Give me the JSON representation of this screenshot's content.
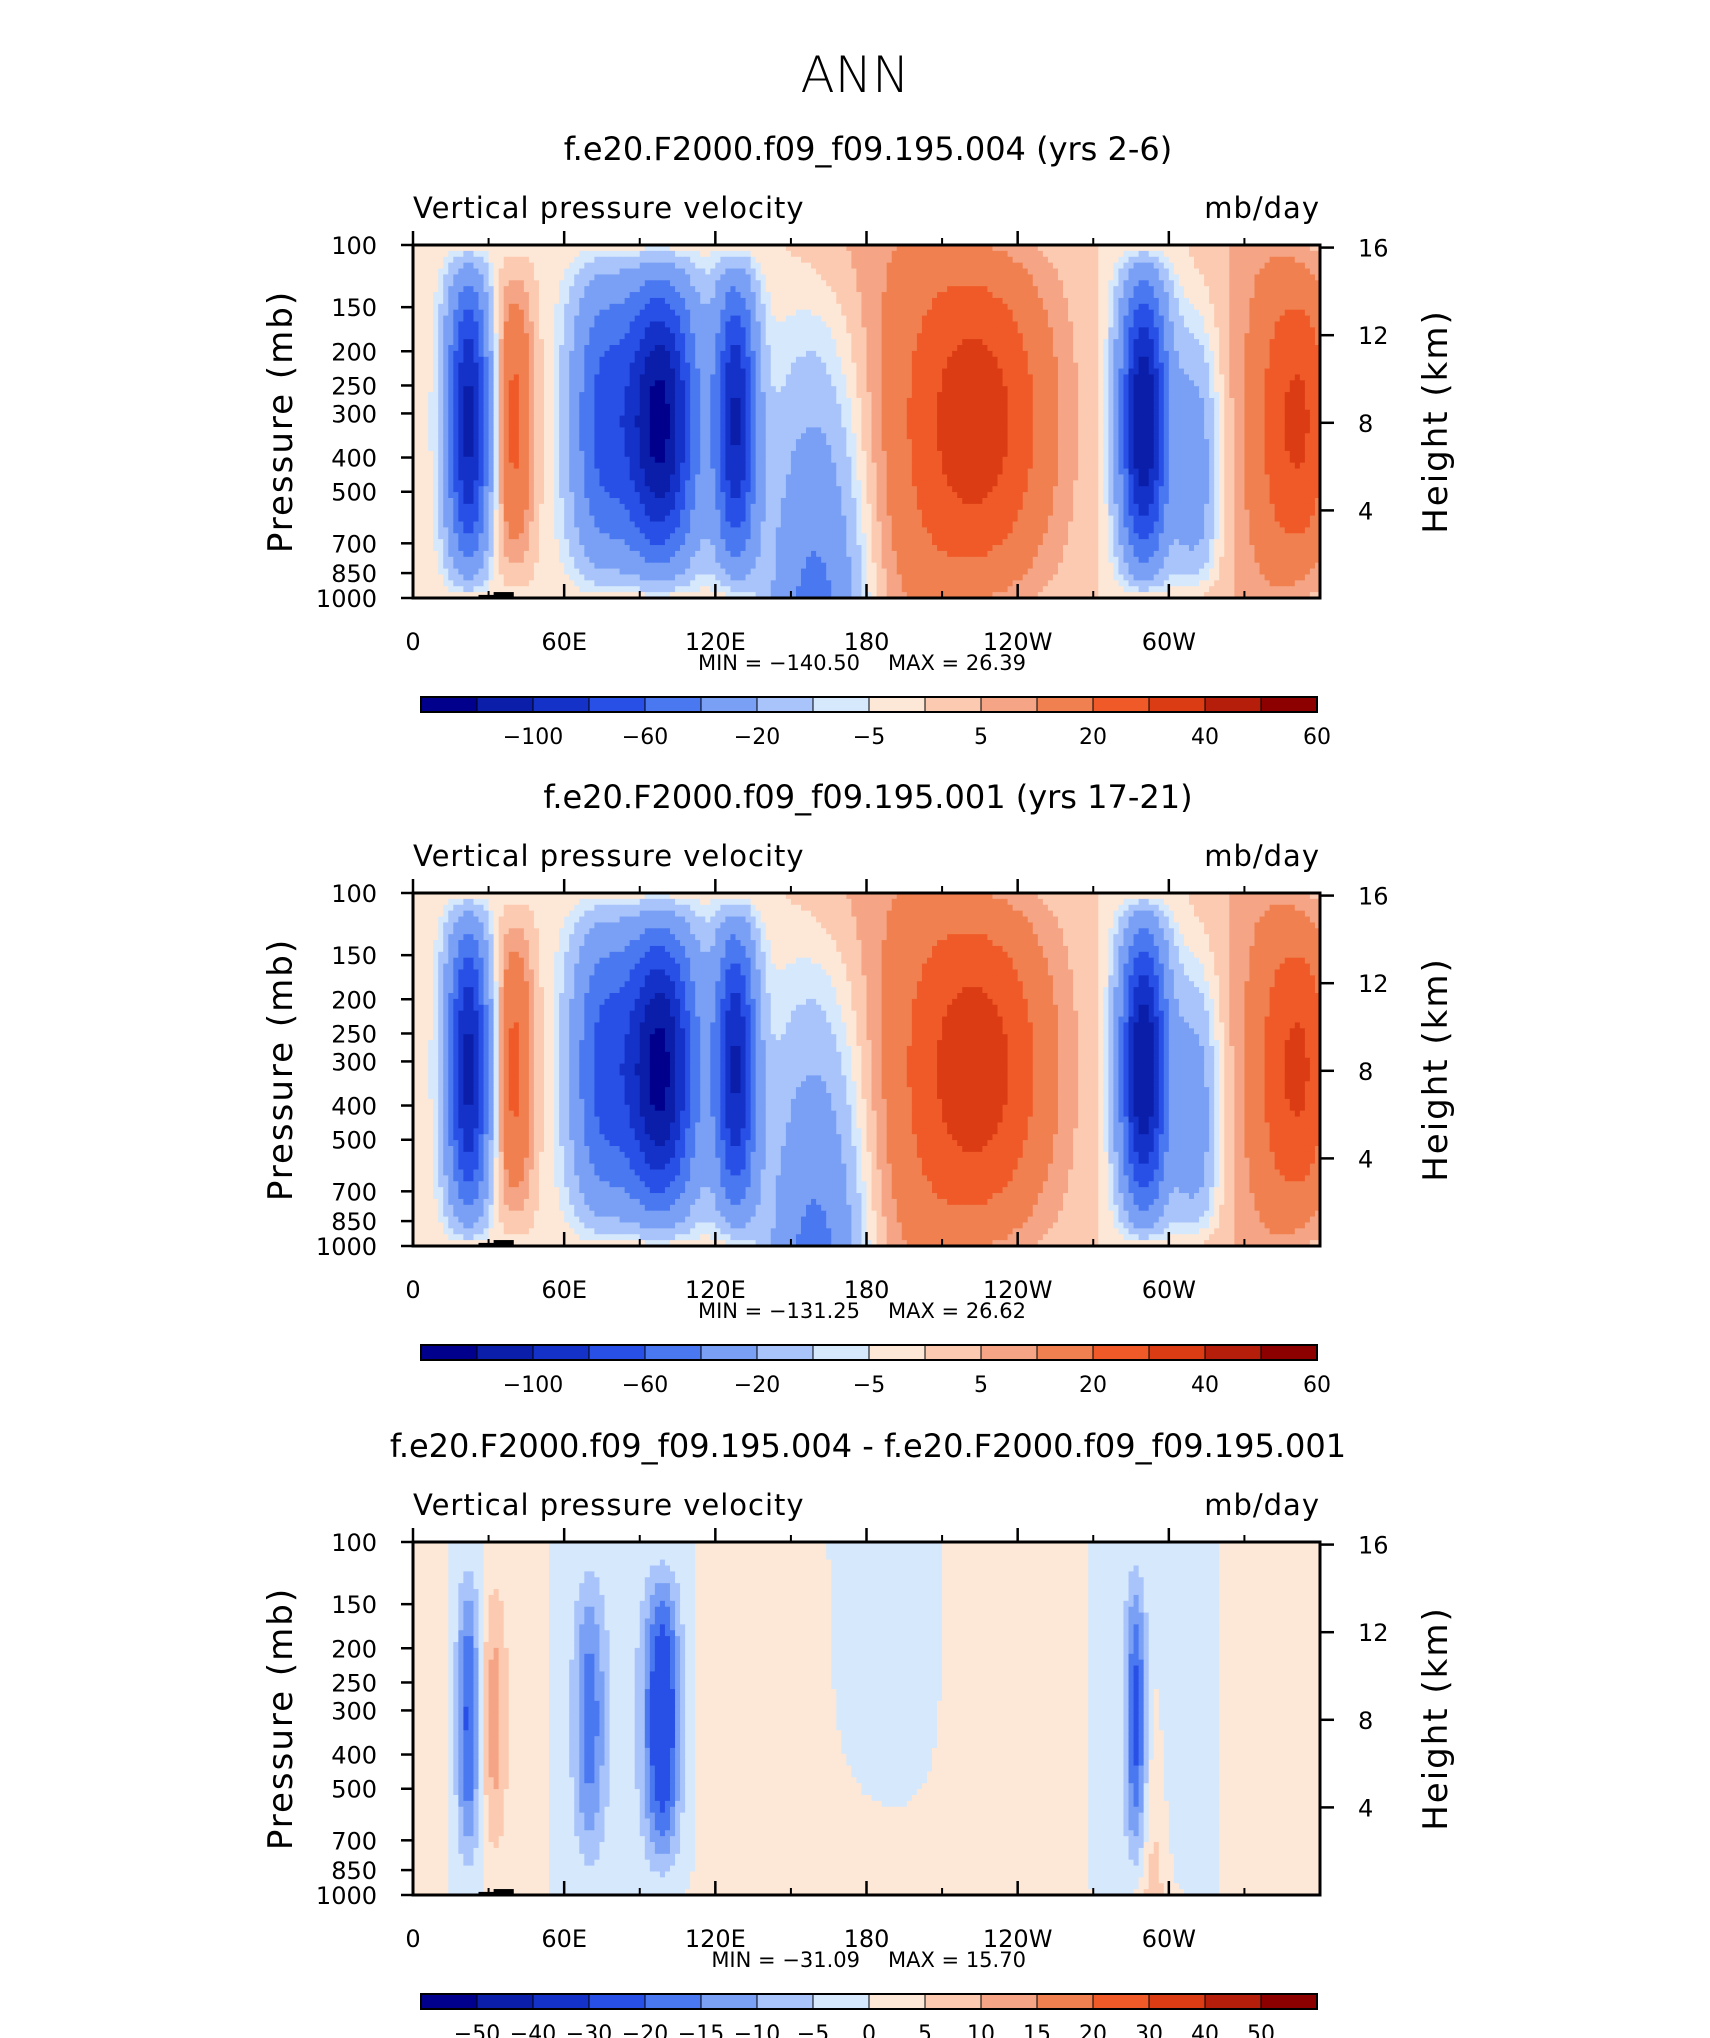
{
  "figure": {
    "title": "ANN"
  },
  "chart_data": [
    {
      "type": "heatmap",
      "title": "f.e20.F2000.f09_f09.195.004 (yrs 2-6)",
      "subtitle_left": "Vertical pressure velocity",
      "subtitle_right": "mb/day",
      "ylabel": "Pressure (mb)",
      "ylabel_right": "Height (km)",
      "x_ticks": [
        "0",
        "60E",
        "120E",
        "180",
        "120W",
        "60W"
      ],
      "y_ticks": [
        "100",
        "150",
        "200",
        "250",
        "300",
        "400",
        "500",
        "700",
        "850",
        "1000"
      ],
      "y_ticks_right": [
        "16",
        "12",
        "8",
        "4"
      ],
      "ylim": [
        1000,
        100
      ],
      "min_label": "MIN = −140.50",
      "max_label": "MAX = 26.39",
      "min": -140.5,
      "max": 26.39,
      "scale": "full",
      "colorbar_labels": [
        "−100",
        "−60",
        "−20",
        "−5",
        "5",
        "20",
        "40",
        "60"
      ]
    },
    {
      "type": "heatmap",
      "title": "f.e20.F2000.f09_f09.195.001 (yrs 17-21)",
      "subtitle_left": "Vertical pressure velocity",
      "subtitle_right": "mb/day",
      "ylabel": "Pressure (mb)",
      "ylabel_right": "Height (km)",
      "x_ticks": [
        "0",
        "60E",
        "120E",
        "180",
        "120W",
        "60W"
      ],
      "y_ticks": [
        "100",
        "150",
        "200",
        "250",
        "300",
        "400",
        "500",
        "700",
        "850",
        "1000"
      ],
      "y_ticks_right": [
        "16",
        "12",
        "8",
        "4"
      ],
      "ylim": [
        1000,
        100
      ],
      "min_label": "MIN = −131.25",
      "max_label": "MAX = 26.62",
      "min": -131.25,
      "max": 26.62,
      "scale": "full",
      "colorbar_labels": [
        "−100",
        "−60",
        "−20",
        "−5",
        "5",
        "20",
        "40",
        "60"
      ]
    },
    {
      "type": "heatmap",
      "title": "f.e20.F2000.f09_f09.195.004 - f.e20.F2000.f09_f09.195.001",
      "subtitle_left": "Vertical pressure velocity",
      "subtitle_right": "mb/day",
      "ylabel": "Pressure (mb)",
      "ylabel_right": "Height (km)",
      "x_ticks": [
        "0",
        "60E",
        "120E",
        "180",
        "120W",
        "60W"
      ],
      "y_ticks": [
        "100",
        "150",
        "200",
        "250",
        "300",
        "400",
        "500",
        "700",
        "850",
        "1000"
      ],
      "y_ticks_right": [
        "16",
        "12",
        "8",
        "4"
      ],
      "ylim": [
        1000,
        100
      ],
      "min_label": "MIN = −31.09",
      "max_label": "MAX = 15.70",
      "min": -31.09,
      "max": 15.7,
      "scale": "diff",
      "colorbar_labels": [
        "−50",
        "−40",
        "−30",
        "−20",
        "−15",
        "−10",
        "−5",
        "0",
        "5",
        "10",
        "15",
        "20",
        "30",
        "40",
        "50"
      ]
    }
  ],
  "colormap": [
    "#00008c",
    "#0a1eaa",
    "#1432c8",
    "#2850e6",
    "#4a78f0",
    "#7aa0f5",
    "#a8c4fa",
    "#d6e8fc",
    "#fde8d8",
    "#fccab0",
    "#f5a585",
    "#f08050",
    "#f05a28",
    "#dc3c14",
    "#b41e0a",
    "#8c0000"
  ]
}
